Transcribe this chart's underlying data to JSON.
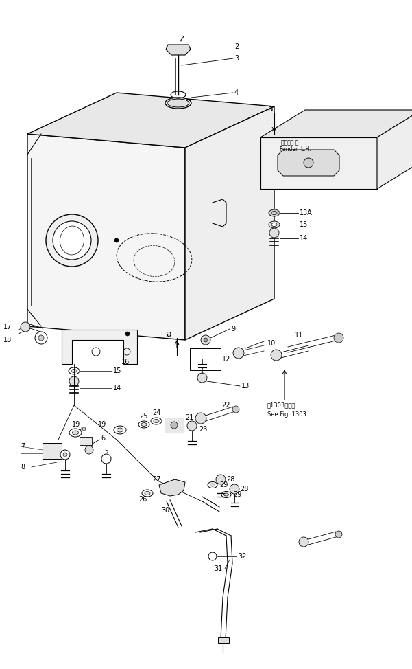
{
  "bg_color": "#ffffff",
  "lc": "#000000",
  "fig_width": 6.01,
  "fig_height": 9.74,
  "dpi": 100,
  "fender_text1": "フェンダ 右",
  "fender_text2": "Fender  L.H.",
  "see_fig1": "第1303図参照",
  "see_fig2": "See Fig. 1303"
}
